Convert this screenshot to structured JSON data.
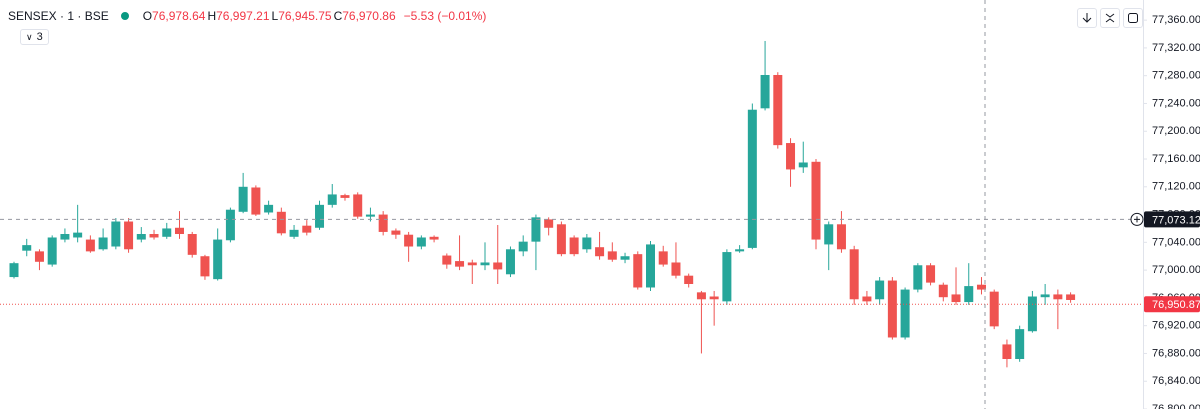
{
  "chart_data": {
    "type": "candlestick",
    "title": "SENSEX · 1 · BSE",
    "indicator_count": "3",
    "ohlc_legend": [
      {
        "label": "O",
        "value": "76,978.64"
      },
      {
        "label": "H",
        "value": "76,997.21"
      },
      {
        "label": "L",
        "value": "76,945.75"
      },
      {
        "label": "C",
        "value": "76,970.86"
      }
    ],
    "change": "−5.53 (−0.01%)",
    "up_color": "#26a69a",
    "down_color": "#ef5350",
    "grid": false,
    "open": [
      76990,
      77028,
      77027,
      77008,
      77044,
      77047,
      77044,
      77030,
      77034,
      77070,
      77044,
      77052,
      77048,
      77061,
      77052,
      77020,
      76987,
      77043,
      77084,
      77119,
      77083,
      77084,
      77048,
      77064,
      77061,
      77094,
      77108,
      77109,
      77077,
      77080,
      77057,
      77051,
      77034,
      77048,
      77021,
      77013,
      77011,
      77007,
      77011,
      76994,
      77027,
      77041,
      77073,
      77066,
      77047,
      77030,
      77033,
      77027,
      77015,
      77023,
      76975,
      77027,
      77011,
      76992,
      76968,
      76962,
      76955,
      77027,
      77032,
      77233,
      77281,
      77183,
      77148,
      77156,
      77037,
      77066,
      77030,
      76962,
      76958,
      76985,
      76903,
      76972,
      77007,
      76979,
      76965,
      76954,
      76979,
      76969,
      76893,
      76872,
      76912,
      76961,
      76965,
      76965
    ],
    "high": [
      77012,
      77045,
      77030,
      77050,
      77060,
      77094,
      77050,
      77060,
      77075,
      77075,
      77062,
      77058,
      77068,
      77085,
      77055,
      77022,
      77060,
      77090,
      77140,
      77122,
      77100,
      77090,
      77065,
      77072,
      77100,
      77124,
      77110,
      77112,
      77090,
      77085,
      77060,
      77055,
      77050,
      77050,
      77024,
      77050,
      77015,
      77040,
      77065,
      77034,
      77050,
      77080,
      77076,
      77070,
      77050,
      77052,
      77055,
      77040,
      77025,
      77027,
      77042,
      77035,
      77040,
      76995,
      76970,
      76970,
      77030,
      77036,
      77240,
      77330,
      77285,
      77190,
      77185,
      77160,
      77070,
      77085,
      77035,
      76970,
      76990,
      76990,
      76975,
      77010,
      77010,
      76982,
      77004,
      77010,
      76990,
      76972,
      76900,
      76920,
      76970,
      76980,
      76972,
      76968
    ],
    "low": [
      76988,
      77020,
      77000,
      77005,
      77040,
      77040,
      77025,
      77028,
      77030,
      77025,
      77040,
      77044,
      77045,
      77045,
      77018,
      76986,
      76985,
      77040,
      77082,
      77078,
      77080,
      77050,
      77045,
      77050,
      77058,
      77090,
      77100,
      77074,
      77070,
      77050,
      77045,
      77012,
      77030,
      77040,
      77002,
      77000,
      76980,
      77000,
      76980,
      76990,
      77020,
      77000,
      77050,
      77020,
      77020,
      77025,
      77015,
      77012,
      77010,
      76972,
      76970,
      77005,
      76988,
      76975,
      76880,
      76920,
      76950,
      77025,
      77030,
      77230,
      77175,
      77120,
      77140,
      77030,
      77000,
      77025,
      76950,
      76950,
      76950,
      76900,
      76900,
      76968,
      76978,
      76955,
      76950,
      76950,
      76965,
      76915,
      76860,
      76868,
      76910,
      76950,
      76915,
      76953
    ],
    "close": [
      77010,
      77036,
      77012,
      77047,
      77052,
      77054,
      77027,
      77047,
      77070,
      77030,
      77052,
      77047,
      77060,
      77052,
      77022,
      76991,
      77044,
      77087,
      77120,
      77080,
      77094,
      77053,
      77058,
      77054,
      77094,
      77109,
      77104,
      77077,
      77080,
      77055,
      77051,
      77034,
      77047,
      77044,
      77008,
      77005,
      77007,
      77011,
      77001,
      77030,
      77041,
      77076,
      77061,
      77023,
      77023,
      77047,
      77020,
      77015,
      77020,
      76975,
      77037,
      77008,
      76992,
      76980,
      76958,
      76958,
      77026,
      77030,
      77231,
      77281,
      77180,
      77145,
      77155,
      77044,
      77066,
      77030,
      76958,
      76955,
      76985,
      76903,
      76972,
      77007,
      76982,
      76961,
      76954,
      76977,
      76972,
      76919,
      76872,
      76915,
      76962,
      76965,
      76958,
      76957
    ],
    "ylim": [
      76800,
      77389
    ],
    "yticks": [
      {
        "value": 76800,
        "label": "76,800.00"
      },
      {
        "value": 76840,
        "label": "76,840.00"
      },
      {
        "value": 76880,
        "label": "76,880.00"
      },
      {
        "value": 76920,
        "label": "76,920.00"
      },
      {
        "value": 76960,
        "label": "76,960.00"
      },
      {
        "value": 77000,
        "label": "77,000.00"
      },
      {
        "value": 77040,
        "label": "77,040.00"
      },
      {
        "value": 77080,
        "label": "77,080.00"
      },
      {
        "value": 77120,
        "label": "77,120.00"
      },
      {
        "value": 77160,
        "label": "77,160.00"
      },
      {
        "value": 77200,
        "label": "77,200.00"
      },
      {
        "value": 77240,
        "label": "77,240.00"
      },
      {
        "value": 77280,
        "label": "77,280.00"
      },
      {
        "value": 77320,
        "label": "77,320.00"
      },
      {
        "value": 77360,
        "label": "77,360.00"
      }
    ],
    "crosshair": {
      "value": 77073.12,
      "label": "77,073.12"
    },
    "last_price": {
      "value": 76950.87,
      "label": "76,950.87"
    }
  }
}
